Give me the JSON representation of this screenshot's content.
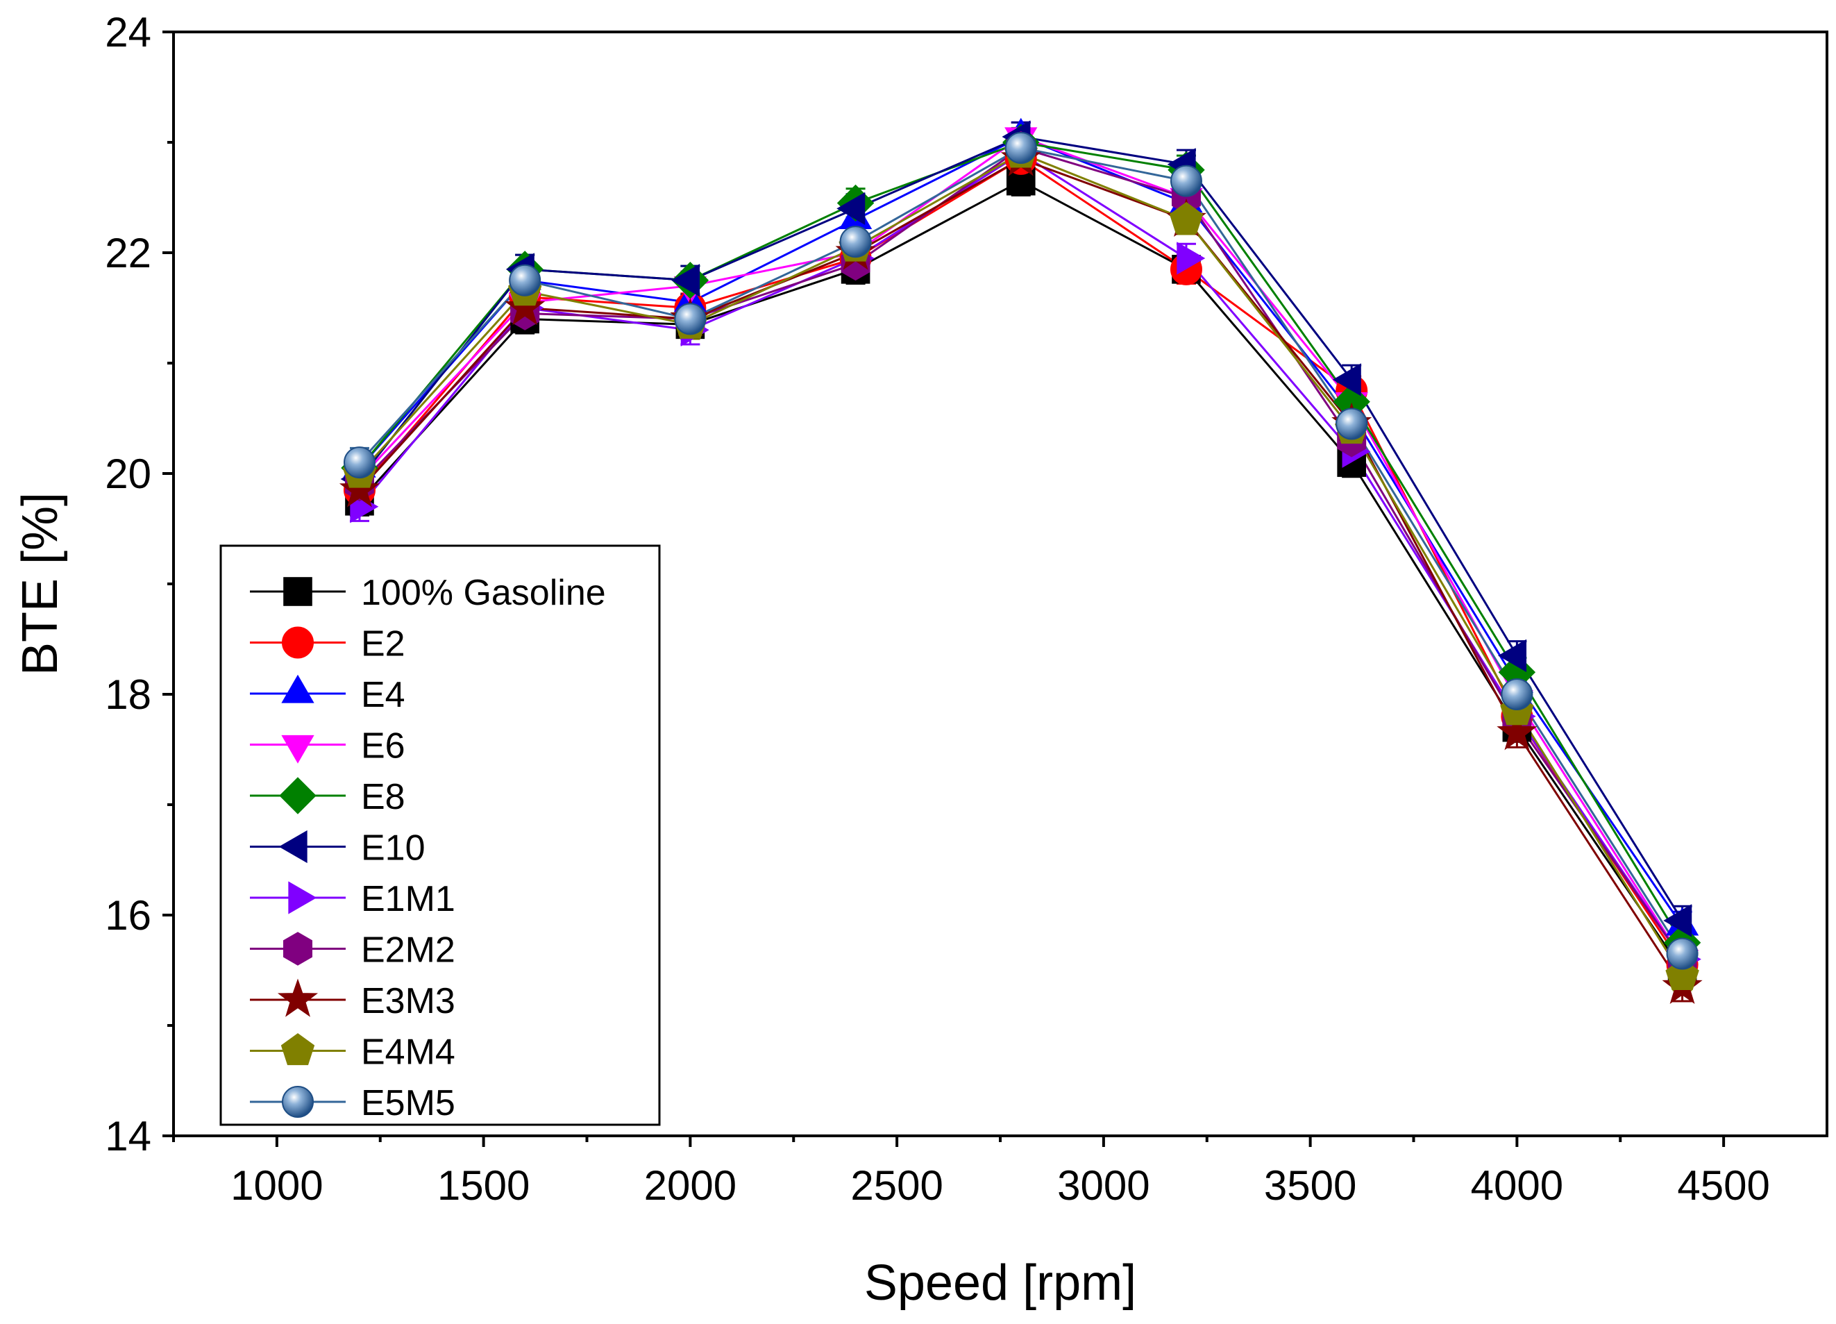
{
  "chart_data": {
    "type": "line",
    "title": "",
    "xlabel": "Speed [rpm]",
    "ylabel": "BTE [%]",
    "xlim": [
      750,
      4750
    ],
    "ylim": [
      14,
      24
    ],
    "xticks": [
      1000,
      1500,
      2000,
      2500,
      3000,
      3500,
      4000,
      4500
    ],
    "yticks": [
      14,
      16,
      18,
      20,
      22,
      24
    ],
    "x": [
      1200,
      1600,
      2000,
      2400,
      2800,
      3200,
      3600,
      4000,
      4400
    ],
    "grid": false,
    "error_bars": true,
    "legend_position": "lower-left",
    "series": [
      {
        "name": "100% Gasoline",
        "color": "#000000",
        "marker": "square",
        "values": [
          19.75,
          21.4,
          21.35,
          21.85,
          22.65,
          21.85,
          20.1,
          17.7,
          15.5
        ]
      },
      {
        "name": "E2",
        "color": "#ff0000",
        "marker": "circle",
        "values": [
          19.85,
          21.6,
          21.5,
          21.95,
          22.85,
          21.85,
          20.75,
          17.8,
          15.55
        ]
      },
      {
        "name": "E4",
        "color": "#0000ff",
        "marker": "triangle-up",
        "values": [
          20.05,
          21.75,
          21.55,
          22.3,
          23.05,
          22.45,
          20.55,
          18.1,
          15.9
        ]
      },
      {
        "name": "E6",
        "color": "#ff00ff",
        "marker": "triangle-down",
        "values": [
          19.95,
          21.55,
          21.7,
          22.0,
          23.05,
          22.5,
          20.65,
          17.95,
          15.6
        ]
      },
      {
        "name": "E8",
        "color": "#008000",
        "marker": "diamond",
        "values": [
          20.05,
          21.85,
          21.75,
          22.45,
          23.0,
          22.75,
          20.65,
          18.2,
          15.75
        ]
      },
      {
        "name": "E10",
        "color": "#000080",
        "marker": "triangle-left",
        "values": [
          19.95,
          21.85,
          21.75,
          22.4,
          23.05,
          22.8,
          20.85,
          18.35,
          15.95
        ]
      },
      {
        "name": "E1M1",
        "color": "#8000ff",
        "marker": "triangle-right",
        "values": [
          19.7,
          21.5,
          21.3,
          21.95,
          22.9,
          21.95,
          20.2,
          17.8,
          15.6
        ]
      },
      {
        "name": "E2M2",
        "color": "#800080",
        "marker": "hexagon",
        "values": [
          19.9,
          21.45,
          21.4,
          21.9,
          22.95,
          22.5,
          20.3,
          17.75,
          15.6
        ]
      },
      {
        "name": "E3M3",
        "color": "#800000",
        "marker": "star",
        "values": [
          19.85,
          21.5,
          21.4,
          22.0,
          22.85,
          22.3,
          20.45,
          17.65,
          15.35
        ]
      },
      {
        "name": "E4M4",
        "color": "#808000",
        "marker": "pentagon",
        "values": [
          20.0,
          21.65,
          21.35,
          22.05,
          22.9,
          22.3,
          20.4,
          17.85,
          15.45
        ]
      },
      {
        "name": "E5M5",
        "color": "#336699",
        "marker": "sphere",
        "values": [
          20.1,
          21.75,
          21.4,
          22.1,
          22.95,
          22.65,
          20.45,
          18.0,
          15.65
        ]
      }
    ]
  }
}
